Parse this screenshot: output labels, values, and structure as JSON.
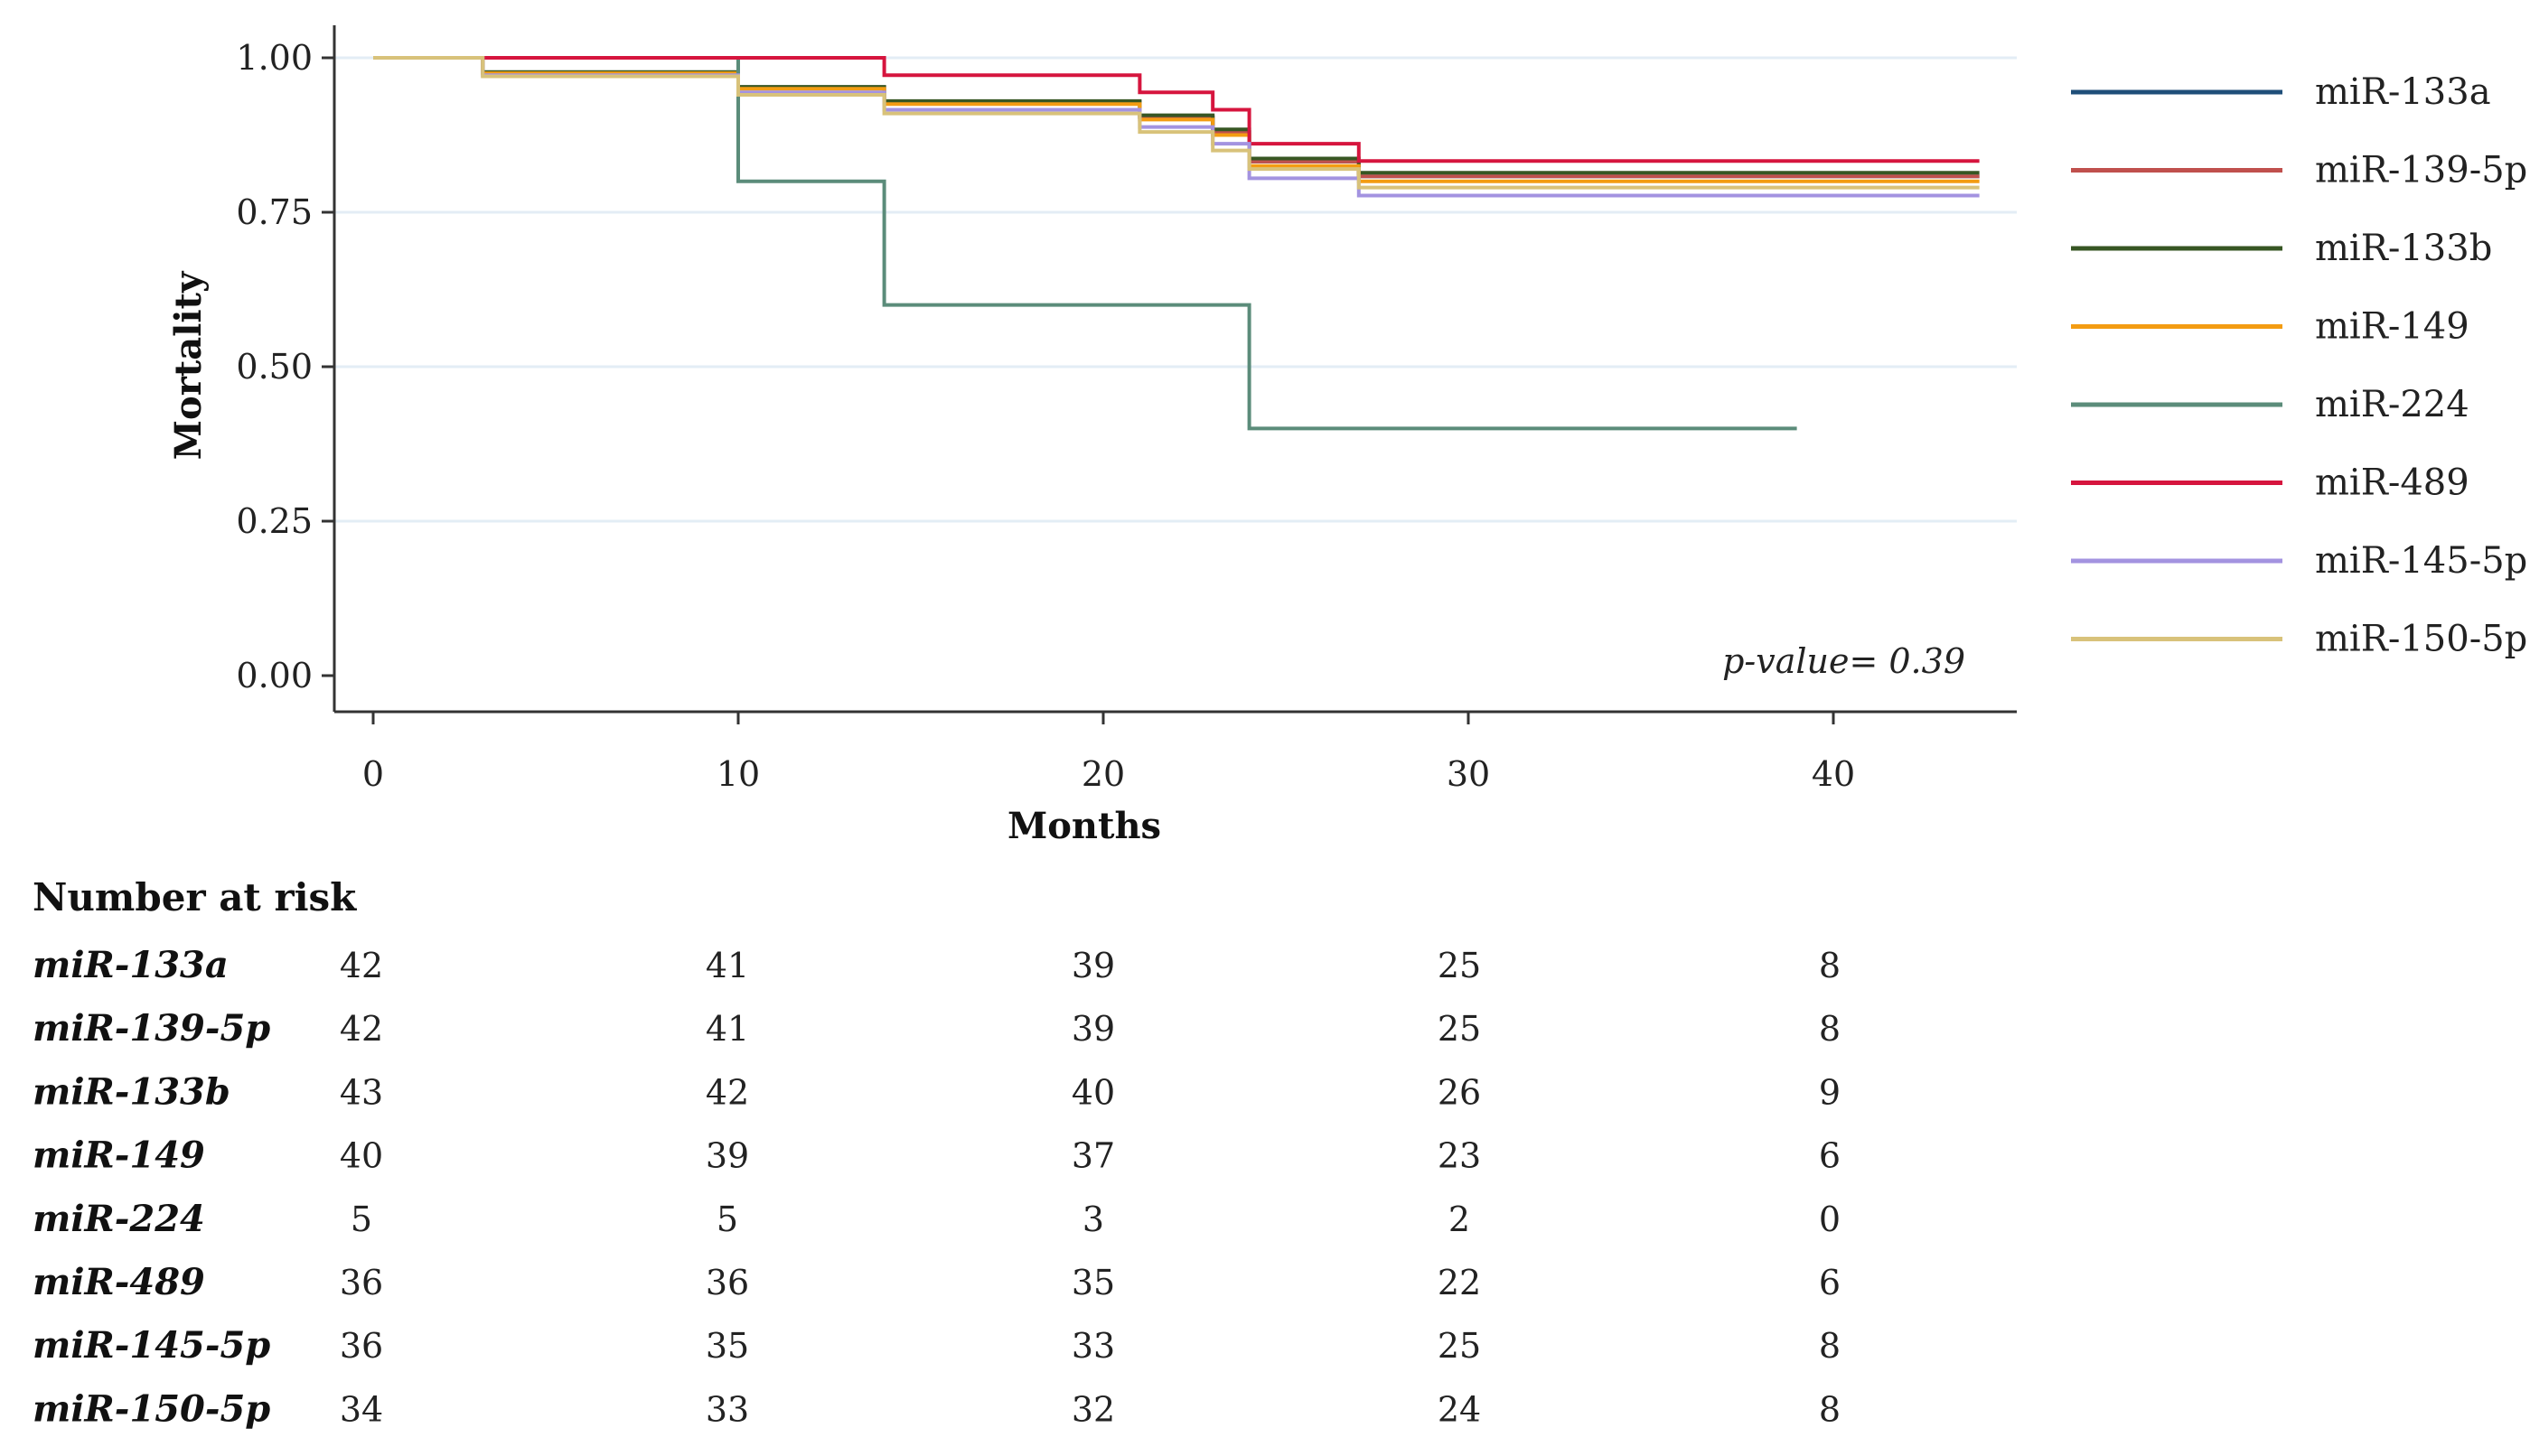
{
  "chart_data": {
    "type": "line",
    "subtype": "kaplan-meier-step",
    "xlabel": "Months",
    "ylabel": "Mortality",
    "xlim": [
      -1,
      45
    ],
    "ylim": [
      -0.06,
      1.06
    ],
    "xticks": [
      "0",
      "10",
      "20",
      "30",
      "40"
    ],
    "xtick_values": [
      0,
      10,
      20,
      30,
      40
    ],
    "yticks": [
      "0.00",
      "0.25",
      "0.50",
      "0.75",
      "1.00"
    ],
    "ytick_values": [
      0,
      0.25,
      0.5,
      0.75,
      1.0
    ],
    "grid": "horizontal",
    "annotation": "p-value= 0.39",
    "legend_position": "right",
    "series": [
      {
        "name": "miR-133a",
        "color": "#1f4e79",
        "x": [
          0,
          3,
          10,
          14,
          21,
          23,
          24,
          27,
          44
        ],
        "y": [
          1.0,
          0.976,
          0.952,
          0.928,
          0.904,
          0.88,
          0.832,
          0.808,
          0.808
        ]
      },
      {
        "name": "miR-139-5p",
        "color": "#c0504d",
        "x": [
          0,
          3,
          10,
          14,
          21,
          23,
          24,
          27,
          44
        ],
        "y": [
          1.0,
          0.976,
          0.952,
          0.928,
          0.904,
          0.88,
          0.832,
          0.808,
          0.808
        ]
      },
      {
        "name": "miR-133b",
        "color": "#375623",
        "x": [
          0,
          3,
          10,
          14,
          21,
          23,
          24,
          27,
          44
        ],
        "y": [
          1.0,
          0.977,
          0.953,
          0.93,
          0.907,
          0.884,
          0.837,
          0.814,
          0.814
        ]
      },
      {
        "name": "miR-149",
        "color": "#f39c12",
        "x": [
          0,
          3,
          10,
          14,
          21,
          23,
          24,
          27,
          44
        ],
        "y": [
          1.0,
          0.975,
          0.95,
          0.925,
          0.9,
          0.875,
          0.825,
          0.8,
          0.8
        ]
      },
      {
        "name": "miR-224",
        "color": "#5b8c7a",
        "x": [
          0,
          10,
          14,
          24,
          39
        ],
        "y": [
          1.0,
          0.8,
          0.6,
          0.4,
          0.4
        ]
      },
      {
        "name": "miR-489",
        "color": "#d6153e",
        "x": [
          0,
          3,
          14,
          21,
          23,
          24,
          27,
          44
        ],
        "y": [
          1.0,
          1.0,
          0.972,
          0.944,
          0.916,
          0.861,
          0.833,
          0.833
        ]
      },
      {
        "name": "miR-145-5p",
        "color": "#a393e0",
        "x": [
          0,
          3,
          10,
          14,
          21,
          23,
          24,
          27,
          44
        ],
        "y": [
          1.0,
          0.972,
          0.944,
          0.916,
          0.888,
          0.861,
          0.805,
          0.777,
          0.777
        ]
      },
      {
        "name": "miR-150-5p",
        "color": "#d8c27a",
        "x": [
          0,
          3,
          10,
          14,
          21,
          23,
          24,
          27,
          44
        ],
        "y": [
          1.0,
          0.97,
          0.94,
          0.91,
          0.88,
          0.85,
          0.82,
          0.79,
          0.79
        ]
      }
    ],
    "risk_table": {
      "title": "Number at risk",
      "rows": [
        {
          "label": "miR-133a",
          "values": [
            "42",
            "41",
            "39",
            "25",
            "8"
          ]
        },
        {
          "label": "miR-139-5p",
          "values": [
            "42",
            "41",
            "39",
            "25",
            "8"
          ]
        },
        {
          "label": "miR-133b",
          "values": [
            "43",
            "42",
            "40",
            "26",
            "9"
          ]
        },
        {
          "label": "miR-149",
          "values": [
            "40",
            "39",
            "37",
            "23",
            "6"
          ]
        },
        {
          "label": "miR-224",
          "values": [
            "5",
            "5",
            "3",
            "2",
            "0"
          ]
        },
        {
          "label": "miR-489",
          "values": [
            "36",
            "36",
            "35",
            "22",
            "6"
          ]
        },
        {
          "label": "miR-145-5p",
          "values": [
            "36",
            "35",
            "33",
            "25",
            "8"
          ]
        },
        {
          "label": "miR-150-5p",
          "values": [
            "34",
            "33",
            "32",
            "24",
            "8"
          ]
        }
      ]
    }
  }
}
